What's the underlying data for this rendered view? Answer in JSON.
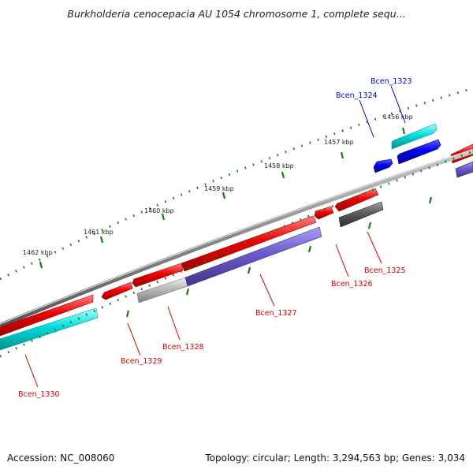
{
  "title": "Burkholderia cenocepacia AU 1054 chromosome 1, complete sequ...",
  "footer": {
    "accession": "Accession: NC_008060",
    "summary": "Topology: circular; Length: 3,294,563 bp; Genes: 3,034"
  },
  "colors": {
    "cds_red": "#ee0000",
    "cds_cyan": "#00d8d8",
    "cds_blue": "#0000ee",
    "cds_violet": "#6a5acd",
    "cds_gray": "#909090",
    "cds_dark": "#505050",
    "backbone": "#888888",
    "tick_green": "#1a7a1a",
    "label_blue": "#0000cc",
    "label_red": "#cc0000"
  },
  "scale_labels": [
    "1456 kbp",
    "1457 kbp",
    "1458 kbp",
    "1459 kbp",
    "1460 kbp",
    "1461 kbp",
    "1462 kbp"
  ],
  "gene_labels": {
    "bcen_1323": "Bcen_1323",
    "bcen_1324": "Bcen_1324",
    "bcen_1325": "Bcen_1325",
    "bcen_1326": "Bcen_1326",
    "bcen_1327": "Bcen_1327",
    "bcen_1328": "Bcen_1328",
    "bcen_1329": "Bcen_1329",
    "bcen_1330": "Bcen_1330"
  }
}
